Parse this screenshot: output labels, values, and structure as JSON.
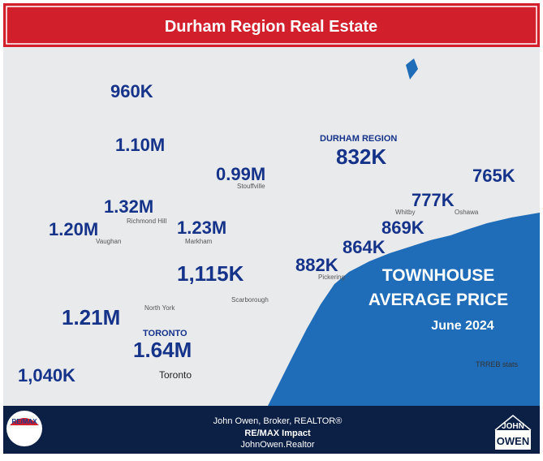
{
  "title": "Durham Region Real Estate",
  "places": [
    "Toronto",
    "Oshawa",
    "Whitby",
    "Pickering",
    "Vaughan",
    "Markham",
    "Richmond Hill",
    "Scarborough",
    "North York",
    "Stouffville"
  ],
  "prices": [
    "960K",
    "1.10M",
    "0.99M",
    "832K",
    "765K",
    "777K",
    "1.32M",
    "1.20M",
    "1.23M",
    "869K",
    "864K",
    "882K",
    "1,115K",
    "1.21M",
    "1.64M",
    "1,040K"
  ],
  "regions": [
    "DURHAM REGION",
    "TORONTO"
  ],
  "panel": [
    "TOWNHOUSE",
    "AVERAGE PRICE",
    "June 2024"
  ],
  "source": "TRREB stats",
  "footer": {
    "logo_left": "RE/MAX",
    "lines": [
      "John Owen, Broker, REALTOR®",
      "RE/MAX Impact",
      "JohnOwen.Realtor"
    ],
    "logo_right": [
      "JOHN",
      "OWEN"
    ]
  }
}
